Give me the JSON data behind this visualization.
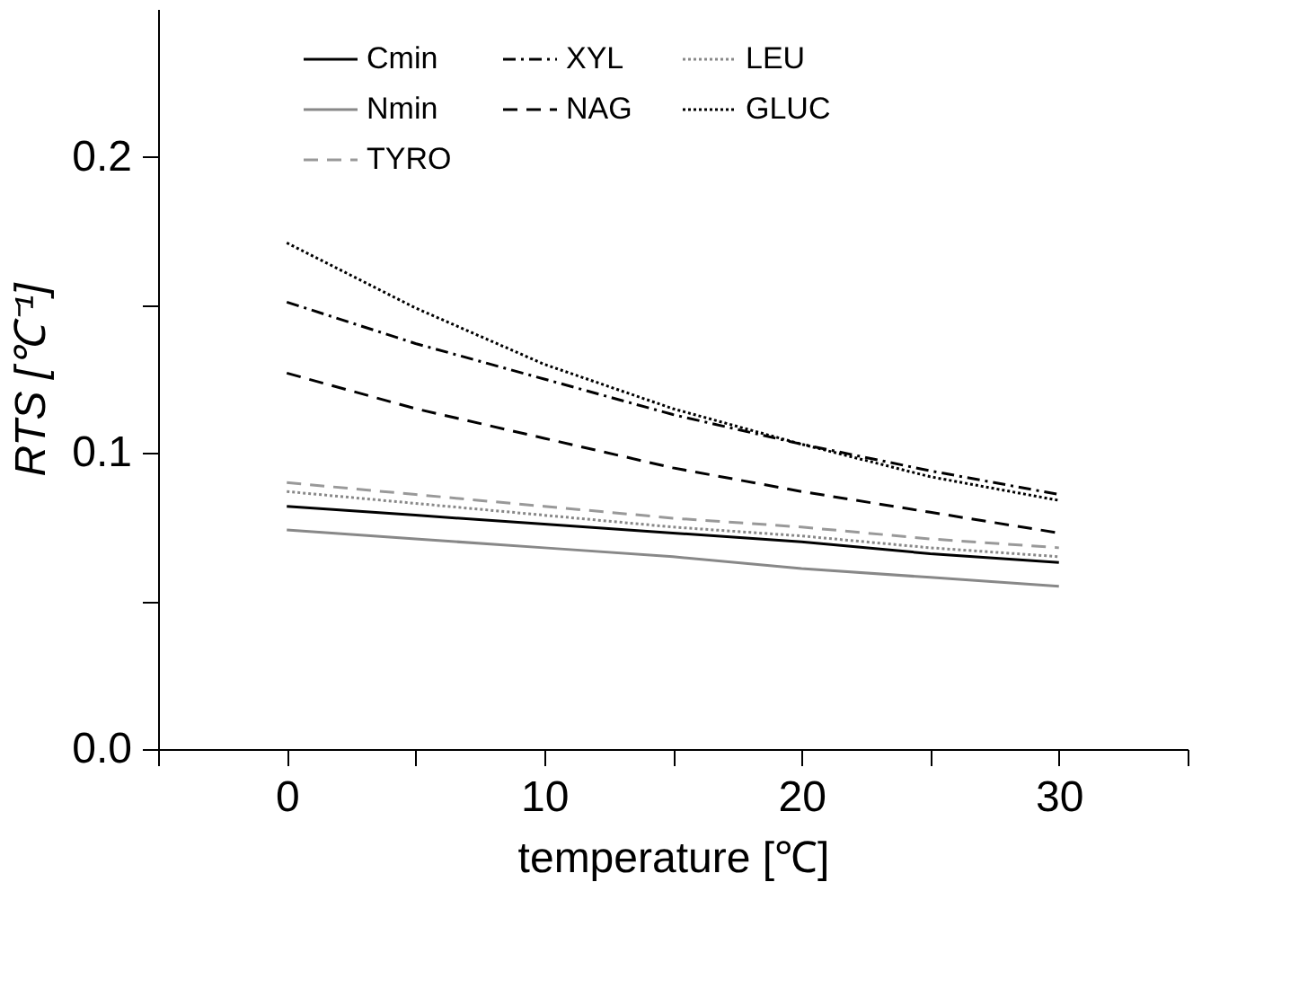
{
  "chart_data": {
    "type": "line",
    "xlabel": "temperature [℃]",
    "ylabel": "RTS [℃⁻¹]",
    "x": [
      0,
      5,
      10,
      15,
      20,
      25,
      30
    ],
    "xlim": [
      -5,
      35
    ],
    "xticks": [
      {
        "value": -5,
        "label": null
      },
      0,
      {
        "value": 5,
        "label": null
      },
      10,
      {
        "value": 15,
        "label": null
      },
      20,
      {
        "value": 25,
        "label": null
      },
      30,
      {
        "value": 35,
        "label": null
      }
    ],
    "ylim": [
      0,
      0.25
    ],
    "yticks": [
      {
        "value": 0,
        "label": "0.0"
      },
      {
        "value": 0.05,
        "label": null
      },
      {
        "value": 0.1,
        "label": "0.1"
      },
      {
        "value": 0.15,
        "label": null
      },
      {
        "value": 0.2,
        "label": "0.2"
      }
    ],
    "grid": false,
    "legend": "top",
    "marker": "none",
    "series": [
      {
        "name": "Cmin",
        "color": "#000000",
        "line_style": "solid",
        "values": [
          0.082,
          0.079,
          0.076,
          0.073,
          0.07,
          0.066,
          0.063
        ]
      },
      {
        "name": "Nmin",
        "color": "#888888",
        "line_style": "solid",
        "values": [
          0.074,
          0.071,
          0.068,
          0.065,
          0.061,
          0.058,
          0.055
        ]
      },
      {
        "name": "GLUC",
        "color": "#000000",
        "line_style": "dotted",
        "values": [
          0.171,
          0.149,
          0.13,
          0.115,
          0.103,
          0.092,
          0.084
        ]
      },
      {
        "name": "XYL",
        "color": "#000000",
        "line_style": "dashdot",
        "values": [
          0.151,
          0.137,
          0.125,
          0.113,
          0.103,
          0.094,
          0.086
        ]
      },
      {
        "name": "NAG",
        "color": "#000000",
        "line_style": "dashed",
        "values": [
          0.127,
          0.115,
          0.105,
          0.095,
          0.087,
          0.08,
          0.073
        ]
      },
      {
        "name": "TYRO",
        "color": "#999999",
        "line_style": "dashed",
        "values": [
          0.09,
          0.086,
          0.082,
          0.078,
          0.075,
          0.071,
          0.068
        ]
      },
      {
        "name": "LEU",
        "color": "#888888",
        "line_style": "dotted",
        "values": [
          0.087,
          0.083,
          0.079,
          0.075,
          0.072,
          0.068,
          0.065
        ]
      }
    ]
  }
}
